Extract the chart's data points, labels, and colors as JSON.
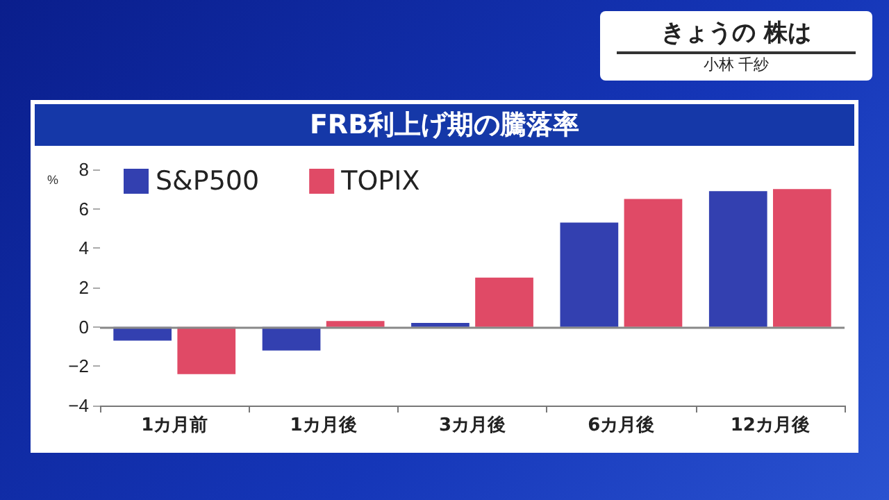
{
  "chart_data": {
    "type": "bar",
    "title": "FRB利上げ期の騰落率",
    "ylabel": "%",
    "annotations": [
      "きょうの 株は",
      "小林 千紗"
    ],
    "categories": [
      "1カ月前",
      "1カ月後",
      "3カ月後",
      "6カ月後",
      "12カ月後"
    ],
    "series": [
      {
        "name": "S&P500",
        "color": "#3340b0",
        "values": [
          -0.7,
          -1.2,
          0.2,
          5.3,
          6.9
        ]
      },
      {
        "name": "TOPIX",
        "color": "#e04a66",
        "values": [
          -2.4,
          0.3,
          2.5,
          6.5,
          7.0
        ]
      }
    ],
    "ylim": [
      -4,
      8
    ],
    "yticks": [
      {
        "value": -4,
        "label": "−4"
      },
      {
        "value": -2,
        "label": "−2"
      },
      0,
      2,
      4,
      6,
      8
    ],
    "ref_lines": [
      {
        "axis": "y",
        "value": 0,
        "color": "#888888"
      }
    ],
    "legend": "top left",
    "grid": false
  }
}
